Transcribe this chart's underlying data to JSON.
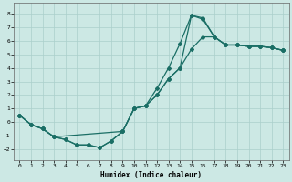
{
  "xlabel": "Humidex (Indice chaleur)",
  "xlim": [
    -0.5,
    23.5
  ],
  "ylim": [
    -2.8,
    8.8
  ],
  "xticks": [
    0,
    1,
    2,
    3,
    4,
    5,
    6,
    7,
    8,
    9,
    10,
    11,
    12,
    13,
    14,
    15,
    16,
    17,
    18,
    19,
    20,
    21,
    22,
    23
  ],
  "yticks": [
    -2,
    -1,
    0,
    1,
    2,
    3,
    4,
    5,
    6,
    7,
    8
  ],
  "bg_color": "#cce8e4",
  "grid_color": "#aacfcb",
  "line_color": "#1a6e65",
  "line1_x": [
    0,
    1,
    2,
    3,
    4,
    5,
    6,
    7,
    8,
    9,
    10,
    11,
    12,
    13,
    14,
    15,
    16,
    17,
    18,
    19,
    20,
    21,
    22,
    23
  ],
  "line1_y": [
    0.5,
    -0.2,
    -0.5,
    -1.1,
    -1.3,
    -1.7,
    -1.7,
    -1.9,
    -1.4,
    -0.7,
    1.0,
    1.2,
    2.0,
    3.2,
    4.0,
    5.4,
    6.3,
    6.3,
    5.7,
    5.7,
    5.6,
    5.6,
    5.5,
    5.3
  ],
  "line2_x": [
    0,
    1,
    2,
    3,
    4,
    5,
    6,
    7,
    8,
    9,
    10,
    11,
    12,
    13,
    14,
    15,
    16,
    17,
    18,
    19,
    20,
    21,
    22,
    23
  ],
  "line2_y": [
    0.5,
    -0.2,
    -0.5,
    -1.1,
    -1.3,
    -1.7,
    -1.7,
    -1.9,
    -1.4,
    -0.7,
    1.0,
    1.2,
    2.5,
    4.0,
    5.8,
    7.9,
    7.7,
    6.3,
    5.7,
    5.7,
    5.6,
    5.6,
    5.5,
    5.3
  ],
  "line3_x": [
    0,
    1,
    2,
    3,
    9,
    10,
    11,
    12,
    13,
    14,
    15,
    16,
    17,
    18,
    19,
    20,
    21,
    22,
    23
  ],
  "line3_y": [
    0.5,
    -0.2,
    -0.5,
    -1.1,
    -0.7,
    1.0,
    1.2,
    2.0,
    3.2,
    4.0,
    7.9,
    7.6,
    6.3,
    5.7,
    5.7,
    5.6,
    5.6,
    5.5,
    5.3
  ],
  "marker": "D",
  "markersize": 2.0,
  "linewidth": 0.9,
  "xlabel_fontsize": 5.5,
  "tick_fontsize": 4.5,
  "spine_color": "#666666"
}
